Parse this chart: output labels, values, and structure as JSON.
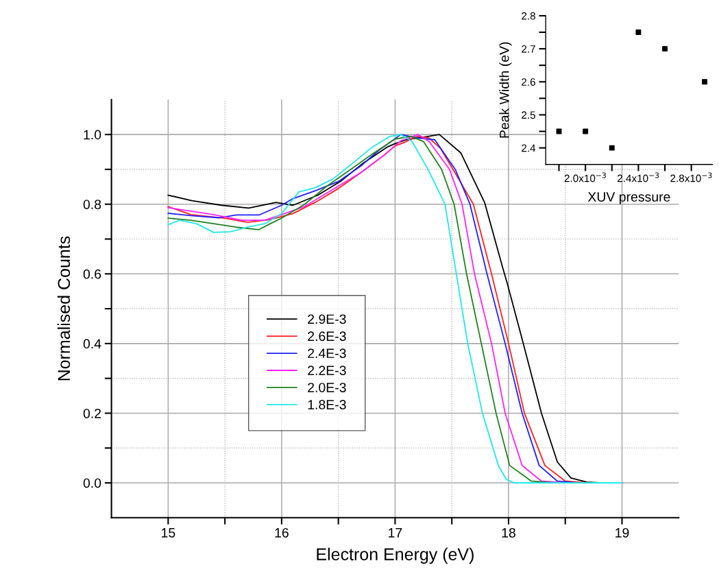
{
  "chart_data": [
    {
      "type": "line",
      "xlabel": "Electron Energy (eV)",
      "ylabel": "Normalised Counts",
      "xlim": [
        14.5,
        19.5
      ],
      "ylim": [
        -0.1,
        1.1
      ],
      "xticks": [
        15,
        {
          "value": 15.5,
          "label": null
        },
        16,
        {
          "value": 16.5,
          "label": null
        },
        17,
        {
          "value": 17.5,
          "label": null
        },
        18,
        {
          "value": 18.5,
          "label": null
        },
        19
      ],
      "yticks": [
        {
          "value": 0,
          "label": "0.0"
        },
        {
          "value": 0.1,
          "label": null
        },
        {
          "value": 0.2,
          "label": "0.2"
        },
        {
          "value": 0.3,
          "label": null
        },
        {
          "value": 0.4,
          "label": "0.4"
        },
        {
          "value": 0.5,
          "label": null
        },
        {
          "value": 0.6,
          "label": "0.6"
        },
        {
          "value": 0.7,
          "label": null
        },
        {
          "value": 0.8,
          "label": "0.8"
        },
        {
          "value": 0.9,
          "label": null
        },
        {
          "value": 1,
          "label": "1.0"
        }
      ],
      "grid": true,
      "legend": "center left",
      "line_style": "solid",
      "marker": "none",
      "series": [
        {
          "name": "2.9E-3",
          "color": "#000000",
          "x": [
            15,
            15.21,
            15.47,
            15.71,
            15.95,
            16.1,
            16.32,
            16.52,
            16.72,
            16.93,
            17.0,
            17.1,
            17.2,
            17.3,
            17.39,
            17.58,
            17.79,
            17.95,
            17.99,
            18.13,
            18.29,
            18.43,
            18.55,
            18.69,
            18.8,
            19.0
          ],
          "values": [
            0.826,
            0.81,
            0.797,
            0.789,
            0.805,
            0.797,
            0.826,
            0.866,
            0.918,
            0.964,
            0.974,
            0.985,
            0.99,
            0.995,
            1.0,
            0.947,
            0.804,
            0.616,
            0.571,
            0.4,
            0.2,
            0.06,
            0.014,
            0.002,
            0,
            0
          ]
        },
        {
          "name": "2.6E-3",
          "color": "#ff2020",
          "x": [
            15,
            15.2,
            15.5,
            15.7,
            15.9,
            16.1,
            16.3,
            16.5,
            16.7,
            16.9,
            17.0,
            17.1,
            17.2,
            17.3,
            17.4,
            17.51,
            17.69,
            17.85,
            18.0,
            18.14,
            18.32,
            18.5,
            18.7,
            19.0
          ],
          "values": [
            0.793,
            0.77,
            0.76,
            0.748,
            0.756,
            0.773,
            0.806,
            0.845,
            0.891,
            0.94,
            0.967,
            0.98,
            0.995,
            0.99,
            0.96,
            0.9,
            0.8,
            0.6,
            0.4,
            0.2,
            0.05,
            0.005,
            0,
            0
          ]
        },
        {
          "name": "2.4E-3",
          "color": "#2020ff",
          "x": [
            15,
            15.2,
            15.45,
            15.6,
            15.8,
            16.0,
            16.1,
            16.3,
            16.5,
            16.7,
            16.85,
            17.05,
            17.2,
            17.35,
            17.53,
            17.66,
            17.81,
            17.97,
            18.12,
            18.27,
            18.43,
            18.6,
            19.0
          ],
          "values": [
            0.774,
            0.767,
            0.761,
            0.769,
            0.769,
            0.797,
            0.816,
            0.839,
            0.865,
            0.91,
            0.953,
            1.0,
            0.99,
            0.985,
            0.9,
            0.8,
            0.6,
            0.4,
            0.2,
            0.05,
            0.005,
            0,
            0
          ]
        },
        {
          "name": "2.2E-3",
          "color": "#ff20ff",
          "x": [
            15,
            15.2,
            15.4,
            15.65,
            15.85,
            16.0,
            16.2,
            16.5,
            16.7,
            16.9,
            17.05,
            17.2,
            17.3,
            17.48,
            17.59,
            17.7,
            17.85,
            17.97,
            18.12,
            18.29,
            18.5,
            19.0
          ],
          "values": [
            0.79,
            0.78,
            0.77,
            0.754,
            0.754,
            0.77,
            0.793,
            0.852,
            0.891,
            0.94,
            0.982,
            1.0,
            0.98,
            0.9,
            0.8,
            0.6,
            0.4,
            0.2,
            0.05,
            0.005,
            0,
            0
          ]
        },
        {
          "name": "2.0E-3",
          "color": "#208020",
          "x": [
            15,
            15.2,
            15.4,
            15.6,
            15.8,
            15.9,
            16.0,
            16.2,
            16.4,
            16.6,
            16.8,
            17.0,
            17.14,
            17.25,
            17.41,
            17.52,
            17.63,
            17.76,
            17.89,
            18.01,
            18.2,
            18.4,
            19.0
          ],
          "values": [
            0.76,
            0.754,
            0.744,
            0.734,
            0.727,
            0.744,
            0.76,
            0.799,
            0.852,
            0.898,
            0.944,
            0.987,
            0.995,
            0.98,
            0.9,
            0.8,
            0.6,
            0.4,
            0.2,
            0.05,
            0.005,
            0,
            0
          ]
        },
        {
          "name": "1.8E-3",
          "color": "#20e8e8",
          "x": [
            15,
            15.1,
            15.25,
            15.4,
            15.55,
            15.7,
            15.85,
            16.0,
            16.15,
            16.3,
            16.45,
            16.6,
            16.8,
            16.95,
            17.05,
            17.15,
            17.29,
            17.44,
            17.54,
            17.64,
            17.77,
            17.91,
            17.98,
            18.05,
            19.0
          ],
          "values": [
            0.741,
            0.754,
            0.744,
            0.719,
            0.721,
            0.734,
            0.744,
            0.773,
            0.835,
            0.848,
            0.872,
            0.911,
            0.964,
            0.994,
            1.0,
            0.98,
            0.9,
            0.8,
            0.6,
            0.4,
            0.2,
            0.05,
            0.01,
            0,
            0
          ]
        }
      ]
    },
    {
      "type": "scatter",
      "xlabel": "XUV pressure",
      "ylabel": "Peak Width (eV)",
      "xlim": [
        0.0017,
        0.00296
      ],
      "ylim": [
        2.35,
        2.8
      ],
      "xticks": [
        {
          "value": 0.0018,
          "label": null
        },
        {
          "value": 0.002,
          "label": "2.0x10$^{−3}$"
        },
        {
          "value": 0.0022,
          "label": null
        },
        {
          "value": 0.0024,
          "label": "2.4x10$^{−3}$"
        },
        {
          "value": 0.0026,
          "label": null
        },
        {
          "value": 0.0028,
          "label": "2.8x10$^{−3}$"
        }
      ],
      "yticks": [
        2.4,
        {
          "value": 2.45,
          "label": null
        },
        2.5,
        {
          "value": 2.55,
          "label": null
        },
        2.6,
        {
          "value": 2.65,
          "label": null
        },
        2.7,
        {
          "value": 2.75,
          "label": null
        },
        2.8
      ],
      "grid": false,
      "marker": "square",
      "color": "#000000",
      "x": [
        0.0018,
        0.002,
        0.0022,
        0.0024,
        0.0026,
        0.0029
      ],
      "values": [
        2.45,
        2.45,
        2.4,
        2.75,
        2.7,
        2.6
      ]
    }
  ]
}
